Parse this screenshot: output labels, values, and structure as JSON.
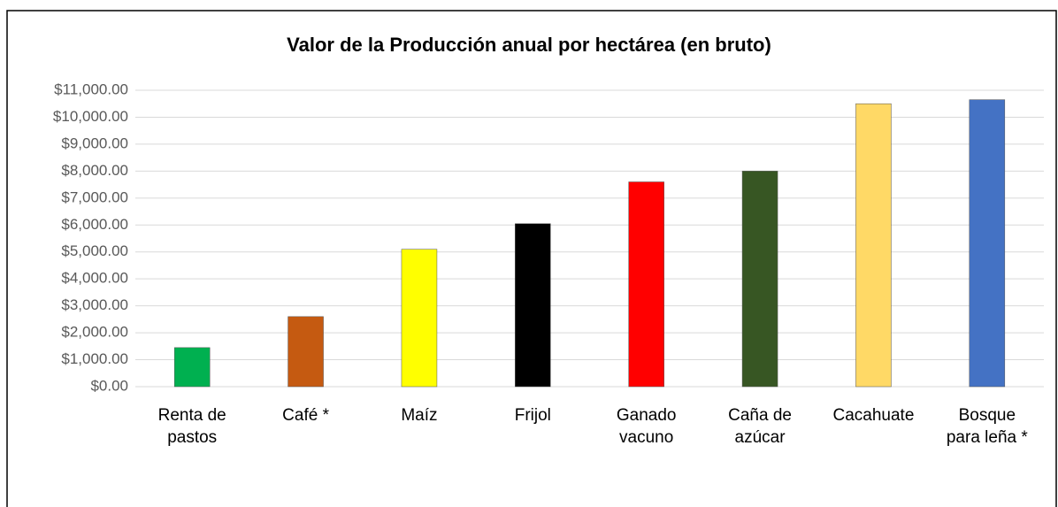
{
  "chart_data": {
    "type": "bar",
    "title": "Valor de la Producción anual por hectárea (en bruto)",
    "categories": [
      "Renta de pastos",
      "Café *",
      "Maíz",
      "Frijol",
      "Ganado vacuno",
      "Caña de azúcar",
      "Cacahuate",
      "Bosque para leña *"
    ],
    "values": [
      1450,
      2600,
      5100,
      6050,
      7600,
      8000,
      10500,
      10650
    ],
    "colors": [
      "#00b050",
      "#c55a11",
      "#ffff00",
      "#000000",
      "#ff0000",
      "#375623",
      "#ffd966",
      "#4472c4"
    ],
    "ylim": [
      0,
      11000
    ],
    "yticks": [
      {
        "value": 0,
        "label": "$0.00"
      },
      {
        "value": 1000,
        "label": "$1,000.00"
      },
      {
        "value": 2000,
        "label": "$2,000.00"
      },
      {
        "value": 3000,
        "label": "$3,000.00"
      },
      {
        "value": 4000,
        "label": "$4,000.00"
      },
      {
        "value": 5000,
        "label": "$5,000.00"
      },
      {
        "value": 6000,
        "label": "$6,000.00"
      },
      {
        "value": 7000,
        "label": "$7,000.00"
      },
      {
        "value": 8000,
        "label": "$8,000.00"
      },
      {
        "value": 9000,
        "label": "$9,000.00"
      },
      {
        "value": 10000,
        "label": "$10,000.00"
      },
      {
        "value": 11000,
        "label": "$11,000.00"
      }
    ],
    "grid": true
  }
}
